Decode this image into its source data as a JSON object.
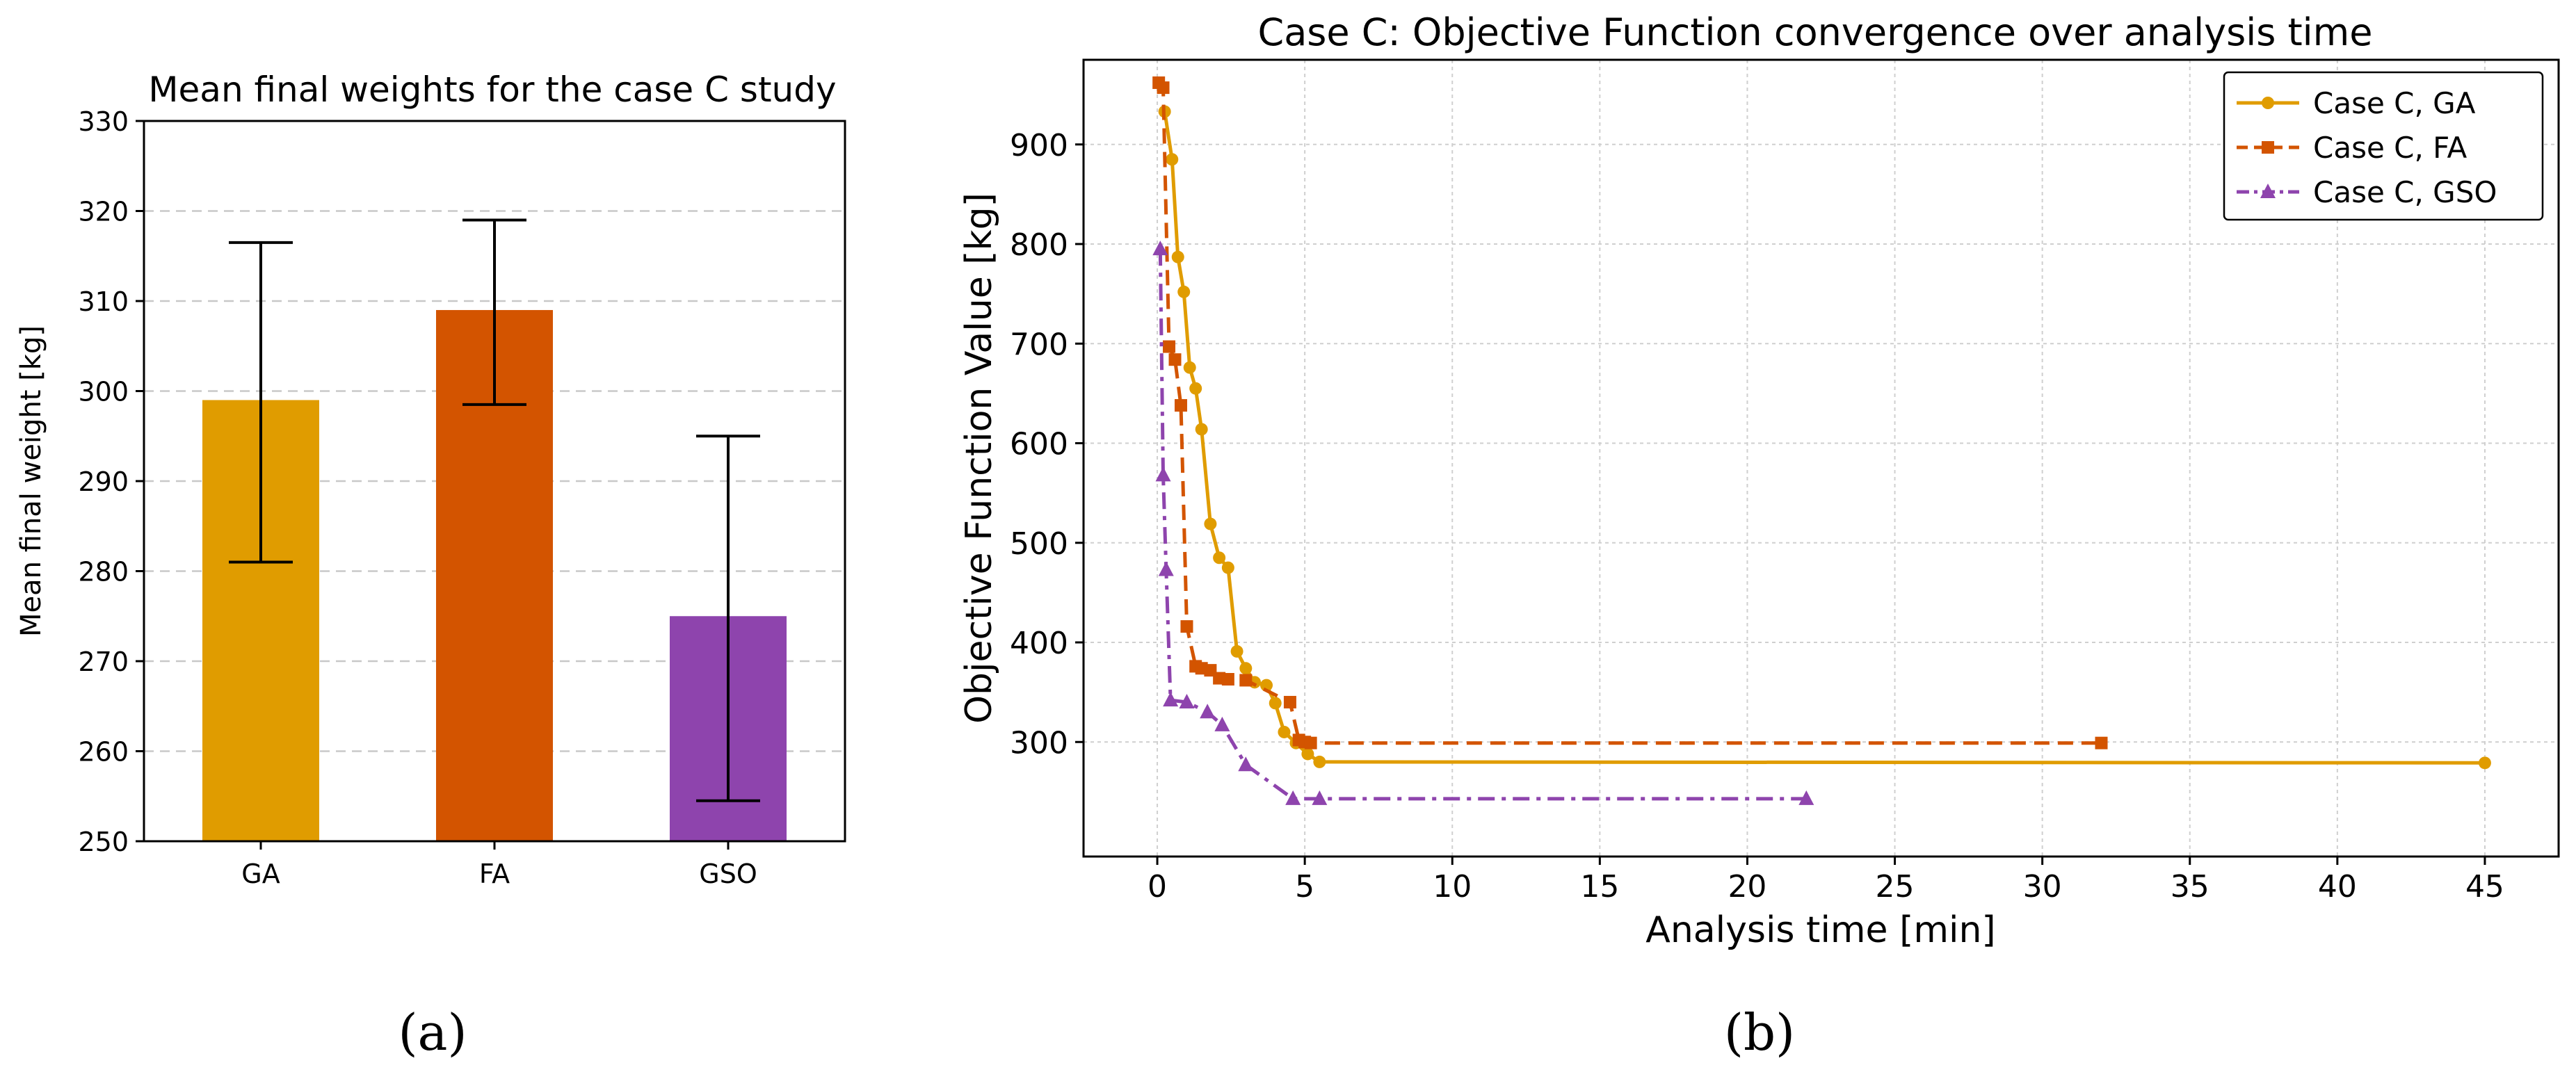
{
  "chart_data": [
    {
      "type": "bar",
      "title": "Mean final weights for the case C study",
      "xlabel": "",
      "ylabel": "Mean final weight [kg]",
      "ylim": [
        250,
        330
      ],
      "yticks": [
        250,
        260,
        270,
        280,
        290,
        300,
        310,
        320,
        330
      ],
      "grid": "horizontal dashed",
      "categories": [
        "GA",
        "FA",
        "GSO"
      ],
      "values": [
        299,
        309,
        275
      ],
      "error_low": [
        281,
        298.5,
        254.5
      ],
      "error_high": [
        316.5,
        319,
        295
      ],
      "colors": [
        "#E09C00",
        "#D35400",
        "#8E44AD"
      ],
      "panel_label": "(a)"
    },
    {
      "type": "line",
      "title": "Case C: Objective Function convergence over analysis time",
      "xlabel": "Analysis time [min]",
      "ylabel": "Objective Function Value [kg]",
      "xlim": [
        -2.5,
        47.5
      ],
      "ylim": [
        185,
        985
      ],
      "xticks": [
        0,
        5,
        10,
        15,
        20,
        25,
        30,
        35,
        40,
        45
      ],
      "yticks": [
        300,
        400,
        500,
        600,
        700,
        800,
        900
      ],
      "grid": "both dotted",
      "legend_position": "top-right",
      "panel_label": "(b)",
      "series": [
        {
          "name": "Case C, GA",
          "color": "#E09C00",
          "marker": "circle",
          "linestyle": "solid",
          "x": [
            0.25,
            0.5,
            0.7,
            0.9,
            1.1,
            1.3,
            1.5,
            1.8,
            2.1,
            2.4,
            2.7,
            3.0,
            3.3,
            3.7,
            4.0,
            4.3,
            4.7,
            5.1,
            5.5,
            45
          ],
          "y": [
            933,
            885,
            787,
            752,
            676,
            655,
            614,
            519,
            485,
            475,
            391,
            374,
            360,
            357,
            339,
            310,
            299,
            288,
            280,
            279
          ]
        },
        {
          "name": "Case C, FA",
          "color": "#D35400",
          "marker": "square",
          "linestyle": "dashed",
          "x": [
            0.05,
            0.2,
            0.4,
            0.6,
            0.8,
            1.0,
            1.3,
            1.5,
            1.8,
            2.1,
            2.4,
            3.0,
            4.5,
            4.8,
            5.0,
            5.2,
            32
          ],
          "y": [
            962,
            957,
            697,
            684,
            638,
            416,
            376,
            374,
            372,
            364,
            363,
            362,
            340,
            302,
            300,
            299,
            299
          ]
        },
        {
          "name": "Case C, GSO",
          "color": "#8E44AD",
          "marker": "triangle",
          "linestyle": "dashdot",
          "x": [
            0.1,
            0.2,
            0.3,
            0.45,
            1.0,
            1.7,
            2.2,
            3.0,
            4.6,
            5.5,
            22
          ],
          "y": [
            795,
            568,
            473,
            342,
            340,
            330,
            317,
            277,
            243,
            243,
            243
          ]
        }
      ]
    }
  ]
}
